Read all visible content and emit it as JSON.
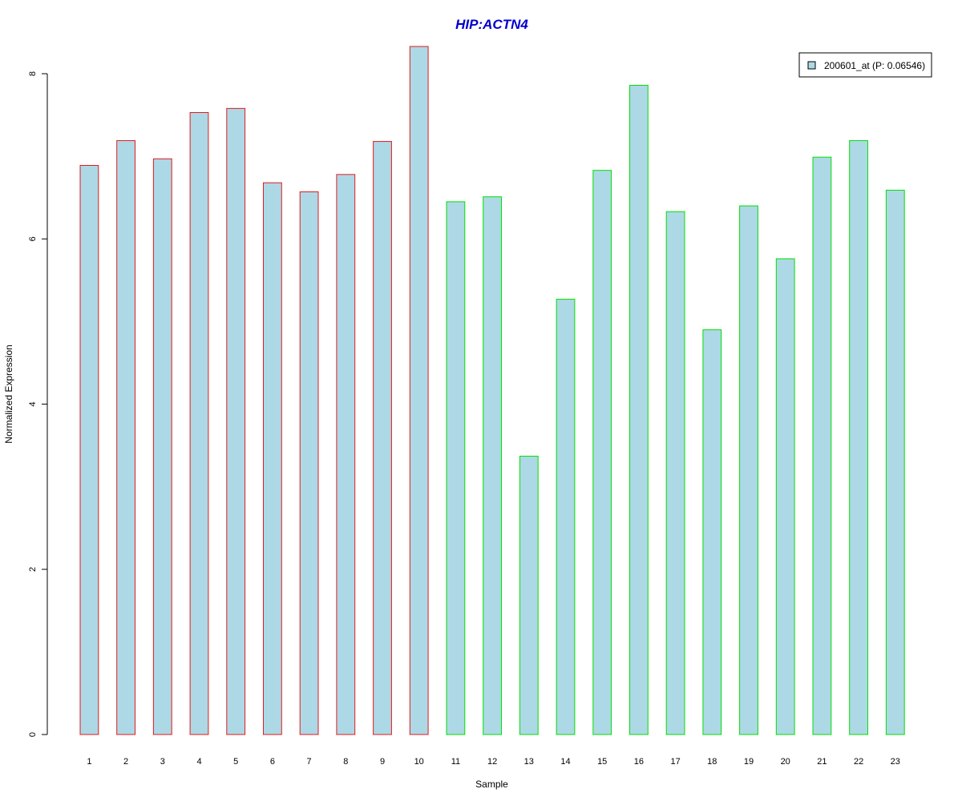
{
  "chart_data": {
    "type": "bar",
    "title": "HIP:ACTN4",
    "xlabel": "Sample",
    "ylabel": "Normalized Expression",
    "categories": [
      "1",
      "2",
      "3",
      "4",
      "5",
      "6",
      "7",
      "8",
      "9",
      "10",
      "11",
      "12",
      "13",
      "14",
      "15",
      "16",
      "17",
      "18",
      "19",
      "20",
      "21",
      "22",
      "23"
    ],
    "series": [
      {
        "name": "200601_at (P: 0.06546)",
        "values": [
          6.89,
          7.19,
          6.97,
          7.53,
          7.58,
          6.68,
          6.57,
          6.78,
          7.18,
          8.33,
          6.45,
          6.51,
          3.37,
          5.27,
          6.83,
          7.86,
          6.33,
          4.9,
          6.4,
          5.76,
          6.99,
          7.19,
          6.59
        ]
      }
    ],
    "groups": [
      {
        "samples": [
          1,
          10
        ],
        "border_color": "#e41a1c"
      },
      {
        "samples": [
          11,
          23
        ],
        "border_color": "#00e000"
      }
    ],
    "ylim": [
      0,
      8.33
    ],
    "yticks": [
      0,
      2,
      4,
      6,
      8
    ],
    "bar_fill": "#add8e6",
    "title_color": "#0000cd",
    "legend_position": "top-right",
    "grid": false
  }
}
